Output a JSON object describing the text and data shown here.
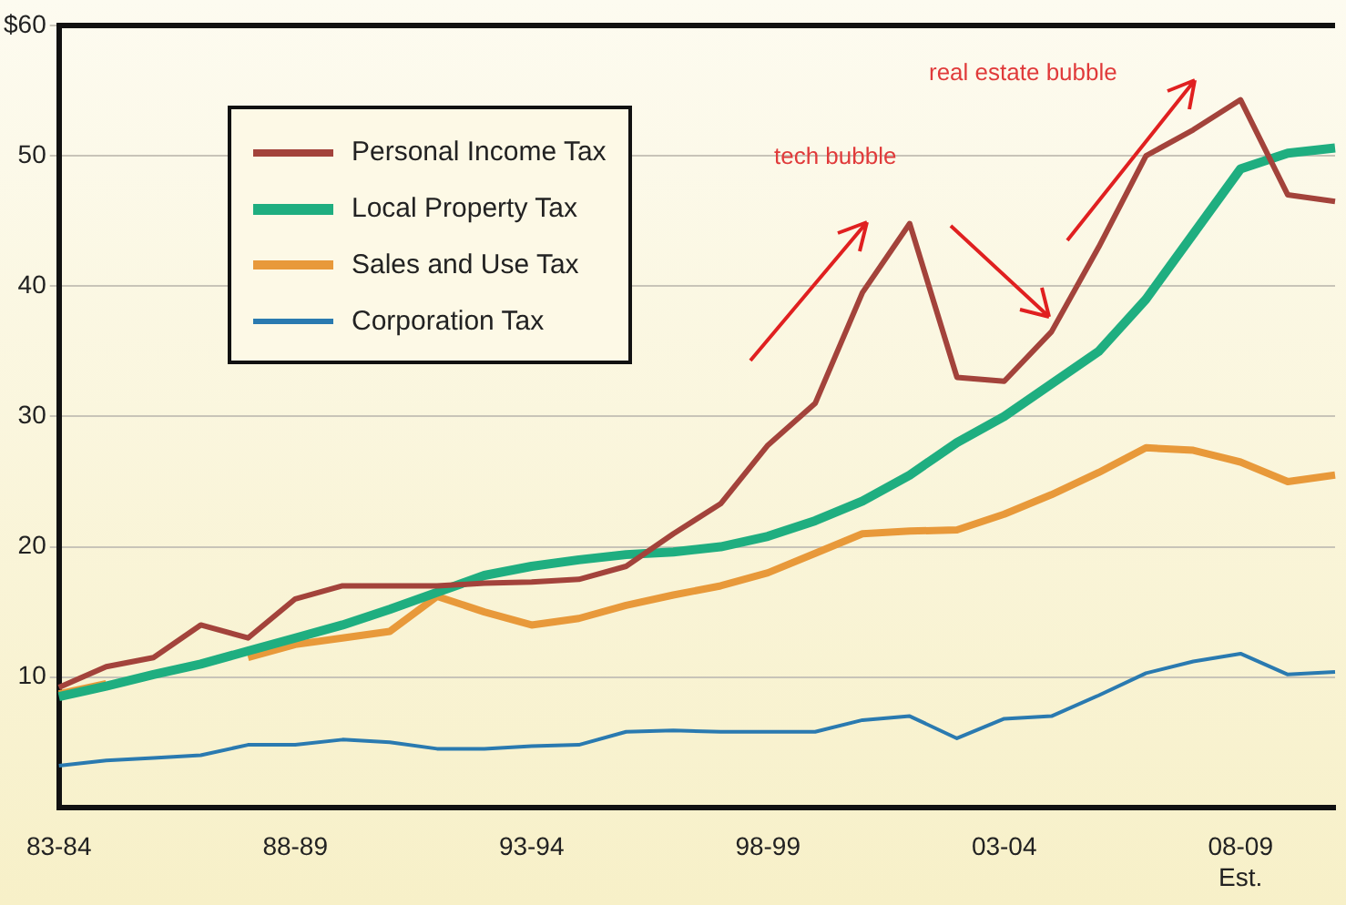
{
  "chart_data": {
    "type": "line",
    "categories": [
      "83-84",
      null,
      null,
      null,
      null,
      "88-89",
      null,
      null,
      null,
      null,
      "93-94",
      null,
      null,
      null,
      null,
      "98-99",
      null,
      null,
      null,
      null,
      "03-04",
      null,
      null,
      null,
      null,
      "08-09 Est.",
      null,
      null
    ],
    "series": [
      {
        "name": "Personal Income Tax",
        "color": "#a3433b",
        "values": [
          9.2,
          10.8,
          11.5,
          14,
          13,
          16,
          17,
          17,
          17,
          17.2,
          17.3,
          17.5,
          18.5,
          21,
          23.3,
          27.8,
          31,
          39.5,
          44.8,
          33,
          32.7,
          36.5,
          43,
          50,
          52,
          54.3,
          47,
          46.5
        ]
      },
      {
        "name": "Local Property Tax",
        "color": "#1fae80",
        "values": [
          8.5,
          9.3,
          10.2,
          11,
          12,
          13,
          14,
          15.2,
          16.5,
          17.8,
          18.5,
          19,
          19.4,
          19.6,
          20,
          20.8,
          22,
          23.5,
          25.5,
          28,
          30,
          32.5,
          35,
          39,
          44,
          49,
          50.2,
          50.6
        ]
      },
      {
        "name": "Sales and Use Tax",
        "color": "#e8993a",
        "values": [
          8.7,
          9.5,
          null,
          null,
          11.5,
          12.5,
          13,
          13.5,
          16.2,
          15,
          14,
          14.5,
          15.5,
          16.3,
          17,
          18,
          19.5,
          21,
          21.2,
          21.3,
          22.5,
          24,
          25.7,
          27.6,
          27.4,
          26.5,
          25,
          25.5
        ]
      },
      {
        "name": "Corporation Tax",
        "color": "#2a7ab0",
        "values": [
          3.2,
          3.6,
          3.8,
          4,
          4.8,
          4.8,
          5.2,
          5,
          4.5,
          4.5,
          4.7,
          4.8,
          5.8,
          5.9,
          5.8,
          5.8,
          5.8,
          6.7,
          7,
          5.3,
          6.8,
          7,
          8.6,
          10.3,
          11.2,
          11.8,
          10.2,
          10.4
        ]
      }
    ],
    "ylim": [
      0,
      60
    ],
    "yticks": [
      10,
      20,
      30,
      40,
      50,
      {
        "value": 60,
        "label": "$60"
      }
    ],
    "grid": "y",
    "legend": "top left",
    "marker": "none",
    "line_style": "solid",
    "annotations": [
      "tech bubble",
      "real estate bubble"
    ]
  }
}
